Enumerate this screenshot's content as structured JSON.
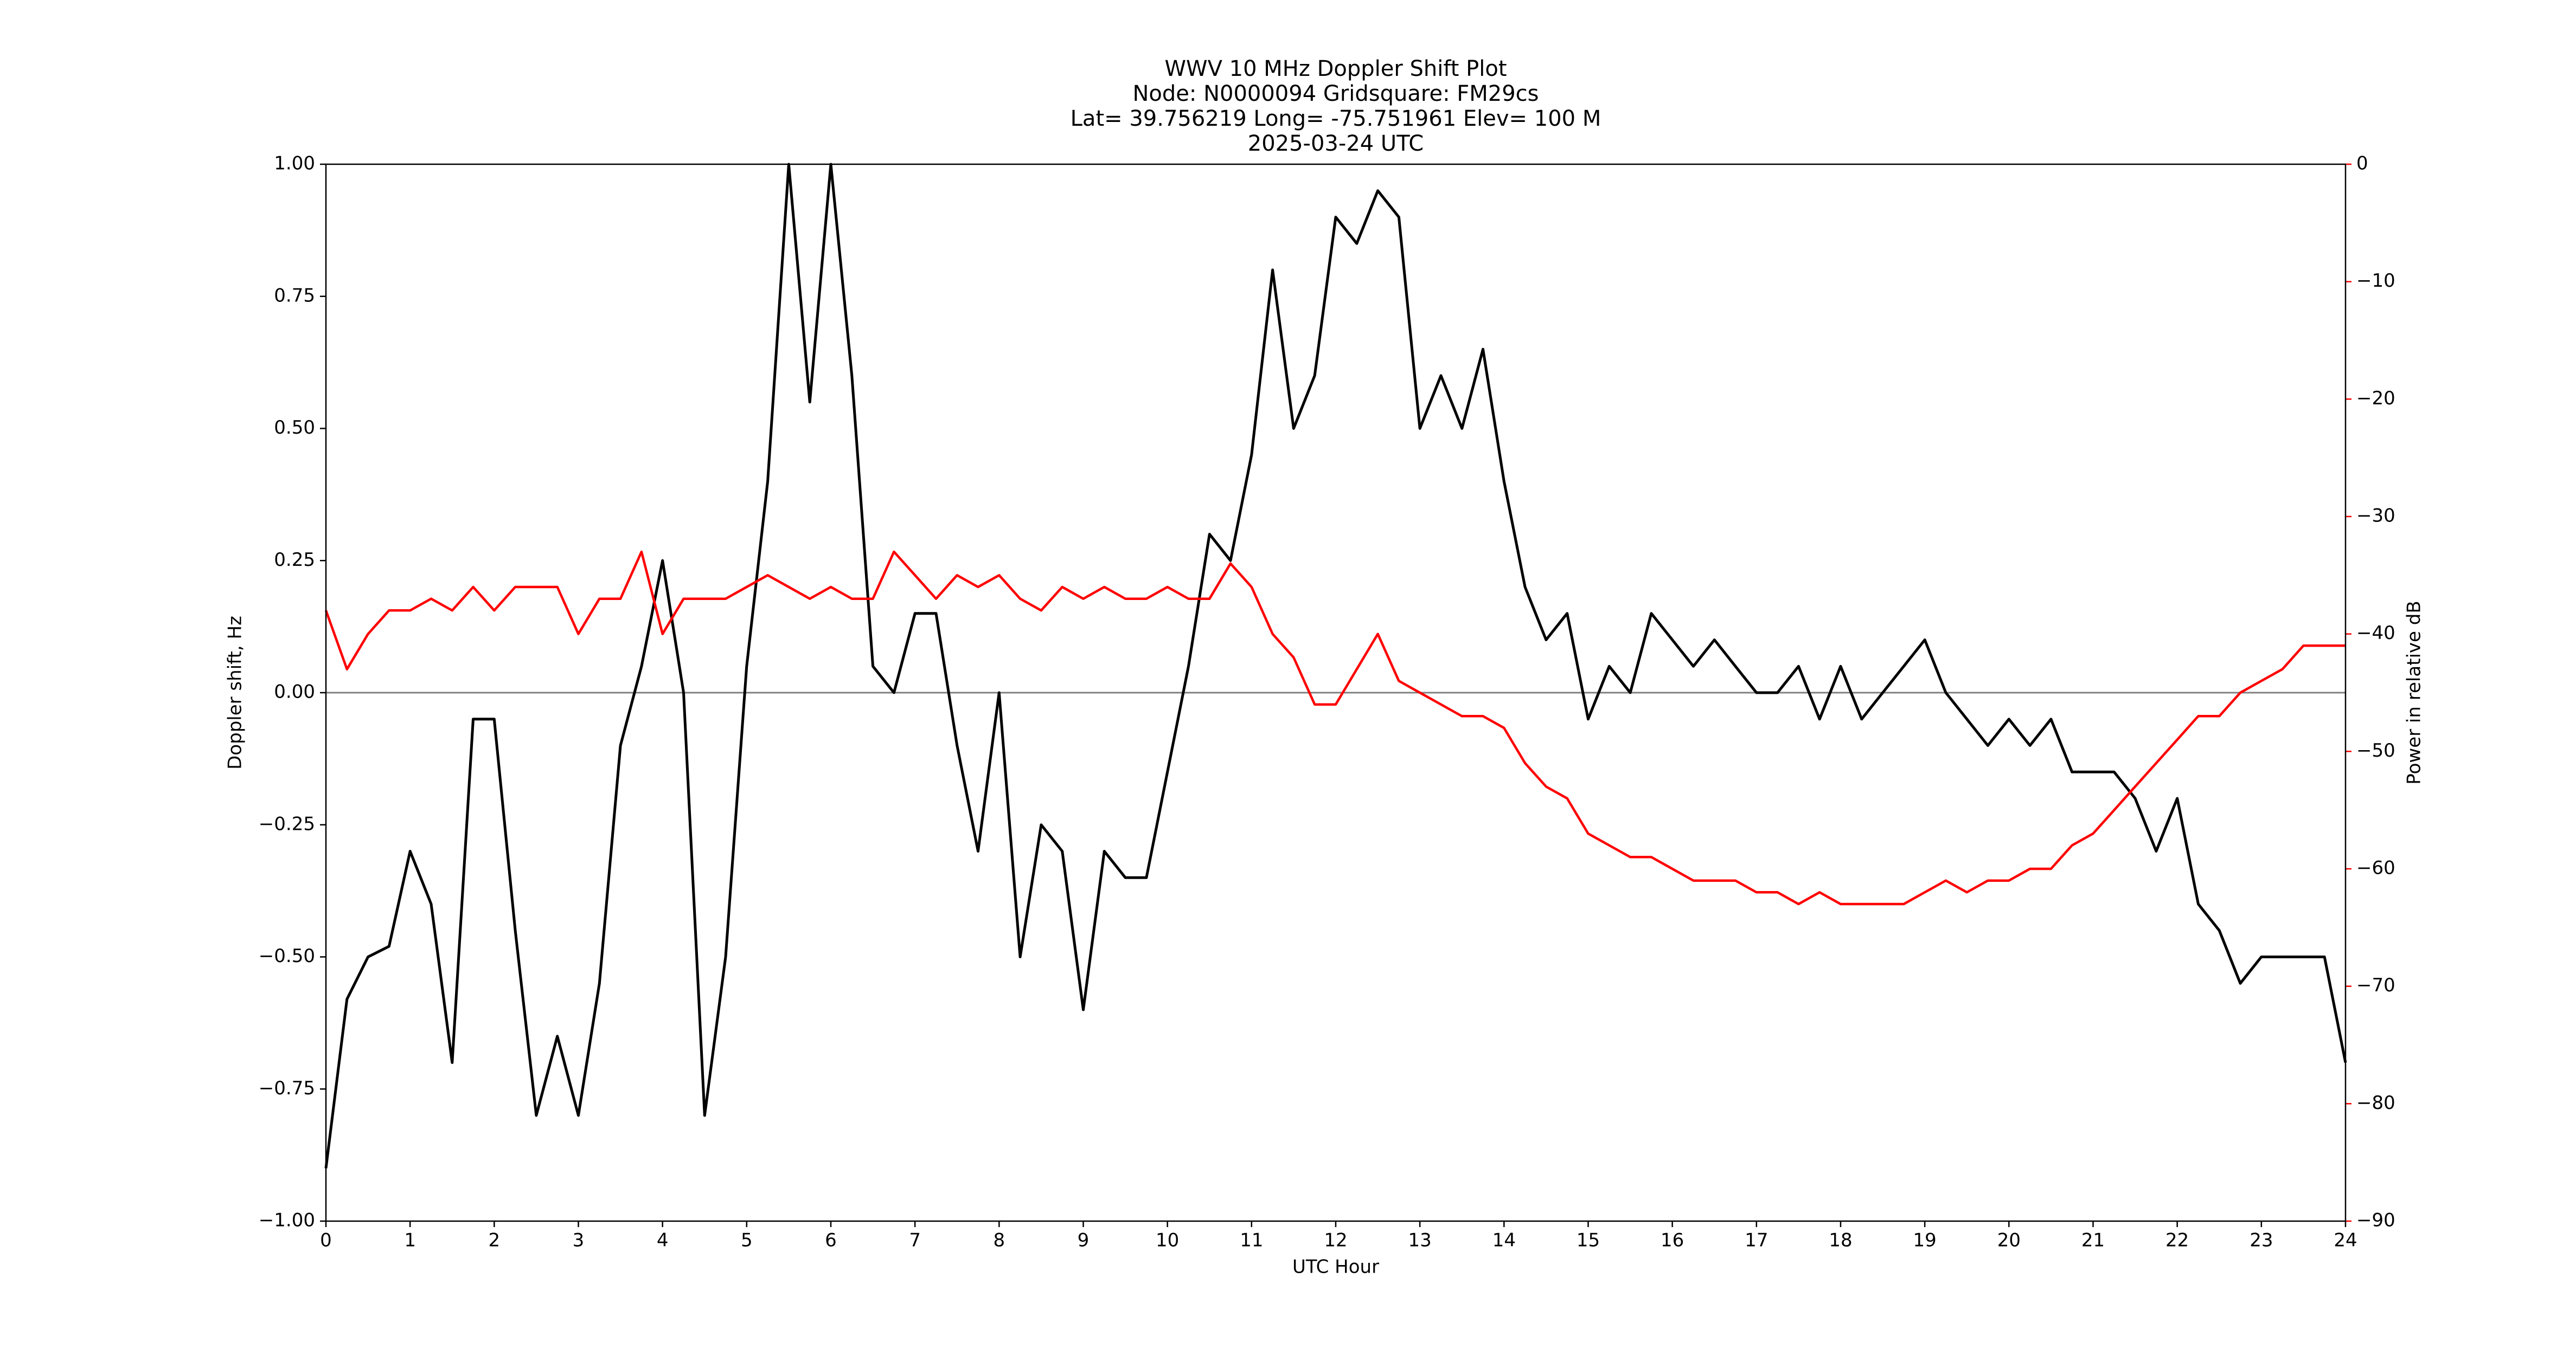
{
  "chart_data": {
    "type": "line",
    "title": [
      "WWV 10 MHz Doppler Shift Plot",
      "Node:  N0000094     Gridsquare:  FM29cs",
      "Lat= 39.756219    Long= -75.751961    Elev= 100 M",
      "2025-03-24  UTC"
    ],
    "xlabel": "UTC Hour",
    "ylabel": "Doppler shift, Hz",
    "y2label": "Power in relative dB",
    "x": [
      0,
      0.25,
      0.5,
      0.75,
      1,
      1.25,
      1.5,
      1.75,
      2,
      2.25,
      2.5,
      2.75,
      3,
      3.25,
      3.5,
      3.75,
      4,
      4.25,
      4.5,
      4.75,
      5,
      5.25,
      5.5,
      5.75,
      6,
      6.25,
      6.5,
      6.75,
      7,
      7.25,
      7.5,
      7.75,
      8,
      8.25,
      8.5,
      8.75,
      9,
      9.25,
      9.5,
      9.75,
      10,
      10.25,
      10.5,
      10.75,
      11,
      11.25,
      11.5,
      11.75,
      12,
      12.25,
      12.5,
      12.75,
      13,
      13.25,
      13.5,
      13.75,
      14,
      14.25,
      14.5,
      14.75,
      15,
      15.25,
      15.5,
      15.75,
      16,
      16.25,
      16.5,
      16.75,
      17,
      17.25,
      17.5,
      17.75,
      18,
      18.25,
      18.5,
      18.75,
      19,
      19.25,
      19.5,
      19.75,
      20,
      20.25,
      20.5,
      20.75,
      21,
      21.25,
      21.5,
      21.75,
      22,
      22.25,
      22.5,
      22.75,
      23,
      23.25,
      23.5,
      23.75,
      24
    ],
    "series": [
      {
        "name": "Doppler shift",
        "color": "#000000",
        "axis": "y",
        "values": [
          -0.9,
          -0.58,
          -0.5,
          -0.48,
          -0.3,
          -0.4,
          -0.7,
          -0.05,
          -0.05,
          -0.45,
          -0.8,
          -0.65,
          -0.8,
          -0.55,
          -0.1,
          0.05,
          0.25,
          0.0,
          -0.8,
          -0.5,
          0.05,
          0.4,
          1.0,
          0.55,
          1.0,
          0.6,
          0.05,
          0.0,
          0.15,
          0.15,
          -0.1,
          -0.3,
          0.0,
          -0.5,
          -0.25,
          -0.3,
          -0.6,
          -0.3,
          -0.35,
          -0.35,
          -0.15,
          0.05,
          0.3,
          0.25,
          0.45,
          0.8,
          0.5,
          0.6,
          0.9,
          0.85,
          0.95,
          0.9,
          0.5,
          0.6,
          0.5,
          0.65,
          0.4,
          0.2,
          0.1,
          0.15,
          -0.05,
          0.05,
          0.0,
          0.15,
          0.1,
          0.05,
          0.1,
          0.05,
          0.0,
          0.0,
          0.05,
          -0.05,
          0.05,
          -0.05,
          0.0,
          0.05,
          0.1,
          0.0,
          -0.05,
          -0.1,
          -0.05,
          -0.1,
          -0.05,
          -0.15,
          -0.15,
          -0.15,
          -0.2,
          -0.3,
          -0.2,
          -0.4,
          -0.45,
          -0.55,
          -0.5,
          -0.5,
          -0.5,
          -0.5,
          -0.7
        ]
      },
      {
        "name": "Power",
        "color": "#ff0000",
        "axis": "y2",
        "values": [
          -38,
          -43,
          -40,
          -38,
          -38,
          -37,
          -38,
          -36,
          -38,
          -36,
          -36,
          -36,
          -40,
          -37,
          -37,
          -33,
          -40,
          -37,
          -37,
          -37,
          -36,
          -35,
          -36,
          -37,
          -36,
          -37,
          -37,
          -33,
          -35,
          -37,
          -35,
          -36,
          -35,
          -37,
          -38,
          -36,
          -37,
          -36,
          -37,
          -37,
          -36,
          -37,
          -37,
          -34,
          -36,
          -40,
          -42,
          -46,
          -46,
          -43,
          -40,
          -44,
          -45,
          -46,
          -47,
          -47,
          -48,
          -51,
          -53,
          -54,
          -57,
          -58,
          -59,
          -59,
          -60,
          -61,
          -61,
          -61,
          -62,
          -62,
          -63,
          -62,
          -63,
          -63,
          -63,
          -63,
          -62,
          -61,
          -62,
          -61,
          -61,
          -60,
          -60,
          -58,
          -57,
          -55,
          -53,
          -51,
          -49,
          -47,
          -47,
          -45,
          -44,
          -43,
          -41,
          -41,
          -41
        ]
      }
    ],
    "xlim": [
      0,
      24
    ],
    "xticks": [
      0,
      1,
      2,
      3,
      4,
      5,
      6,
      7,
      8,
      9,
      10,
      11,
      12,
      13,
      14,
      15,
      16,
      17,
      18,
      19,
      20,
      21,
      22,
      23,
      24
    ],
    "ylim": [
      -1,
      1
    ],
    "yticks": [
      {
        "value": -1,
        "label": "−1.00"
      },
      {
        "value": -0.75,
        "label": "−0.75"
      },
      {
        "value": -0.5,
        "label": "−0.50"
      },
      {
        "value": -0.25,
        "label": "−0.25"
      },
      {
        "value": 0,
        "label": "0.00"
      },
      {
        "value": 0.25,
        "label": "0.25"
      },
      {
        "value": 0.5,
        "label": "0.50"
      },
      {
        "value": 0.75,
        "label": "0.75"
      },
      {
        "value": 1,
        "label": "1.00"
      }
    ],
    "y2lim": [
      -90,
      0
    ],
    "y2ticks": [
      {
        "value": -90,
        "label": "−90"
      },
      {
        "value": -80,
        "label": "−80"
      },
      {
        "value": -70,
        "label": "−70"
      },
      {
        "value": -60,
        "label": "−60"
      },
      {
        "value": -50,
        "label": "−50"
      },
      {
        "value": -40,
        "label": "−40"
      },
      {
        "value": -30,
        "label": "−30"
      },
      {
        "value": -20,
        "label": "−20"
      },
      {
        "value": -10,
        "label": "−10"
      },
      0
    ],
    "y2color": "#ff0000",
    "hline": 0,
    "hline_color": "#808080",
    "grid": false
  }
}
